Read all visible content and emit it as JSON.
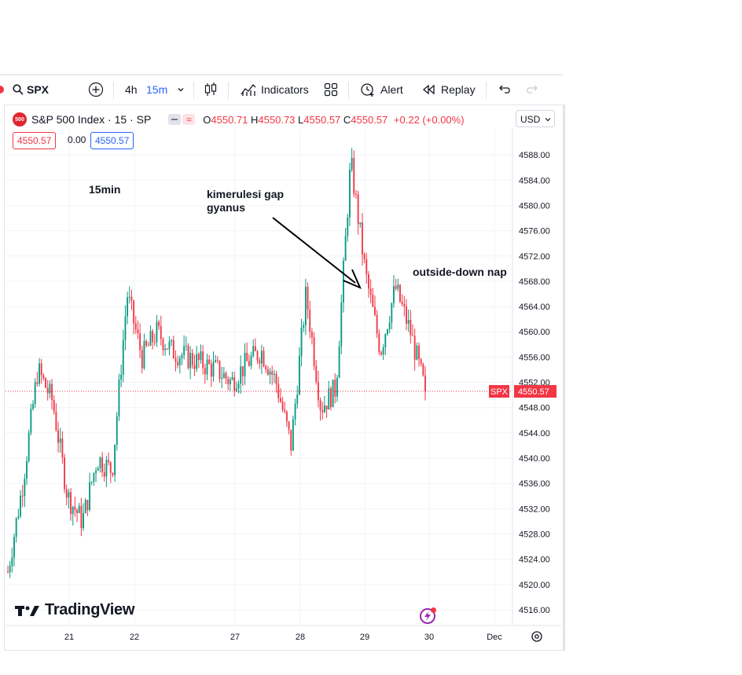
{
  "toolbar": {
    "symbol": "SPX",
    "interval_1": "4h",
    "interval_2": "15m",
    "indicators": "Indicators",
    "alert": "Alert",
    "replay": "Replay"
  },
  "legend": {
    "logo": "500",
    "title": "S&P 500 Index · 15 · SP",
    "o_label": "O",
    "o": "4550.71",
    "h_label": "H",
    "h": "4550.73",
    "l_label": "L",
    "l": "4550.57",
    "c_label": "C",
    "c": "4550.57",
    "change": "+0.22 (+0.00%)",
    "bid": "4550.57",
    "spread": "0.00",
    "ask": "4550.57"
  },
  "currency": "USD",
  "brand": "TradingView",
  "colors": {
    "up": "#089981",
    "down": "#f23645",
    "accent": "#2962ff"
  },
  "annotations": {
    "timeframe": "15min",
    "gap_line1": "kimerulesi gap",
    "gap_line2": "gyanus",
    "outside": "outside-down nap"
  },
  "chart_data": {
    "type": "candlestick",
    "symbol": "SPX",
    "interval": "15",
    "last_price": 4550.57,
    "ylim": [
      4514,
      4592
    ],
    "y_ticks": [
      "4516.00",
      "4520.00",
      "4524.00",
      "4528.00",
      "4532.00",
      "4536.00",
      "4540.00",
      "4544.00",
      "4548.00",
      "4552.00",
      "4556.00",
      "4560.00",
      "4564.00",
      "4568.00",
      "4572.00",
      "4576.00",
      "4580.00",
      "4584.00",
      "4588.00"
    ],
    "x_ticks": [
      "21",
      "22",
      "27",
      "28",
      "29",
      "30",
      "Dec"
    ],
    "price_label": "4550.57",
    "price_tag": "SPX",
    "approx_close_path": [
      {
        "date": "20",
        "close": 4522
      },
      {
        "date": "20",
        "close": 4536
      },
      {
        "date": "20",
        "close": 4554
      },
      {
        "date": "20",
        "close": 4549
      },
      {
        "date": "21",
        "close": 4534
      },
      {
        "date": "21",
        "close": 4530
      },
      {
        "date": "21",
        "close": 4540
      },
      {
        "date": "21",
        "close": 4538
      },
      {
        "date": "22",
        "close": 4566
      },
      {
        "date": "22",
        "close": 4556
      },
      {
        "date": "22",
        "close": 4560
      },
      {
        "date": "22",
        "close": 4557
      },
      {
        "date": "24",
        "close": 4556
      },
      {
        "date": "24",
        "close": 4555
      },
      {
        "date": "24",
        "close": 4554
      },
      {
        "date": "27",
        "close": 4552
      },
      {
        "date": "27",
        "close": 4555
      },
      {
        "date": "27",
        "close": 4557
      },
      {
        "date": "27",
        "close": 4552
      },
      {
        "date": "28",
        "close": 4542
      },
      {
        "date": "28",
        "close": 4566
      },
      {
        "date": "28",
        "close": 4548
      },
      {
        "date": "28",
        "close": 4551
      },
      {
        "date": "29",
        "close": 4587
      },
      {
        "date": "29",
        "close": 4569
      },
      {
        "date": "29",
        "close": 4557
      },
      {
        "date": "29",
        "close": 4567
      },
      {
        "date": "30",
        "close": 4560
      },
      {
        "date": "30",
        "close": 4550.57
      }
    ]
  }
}
